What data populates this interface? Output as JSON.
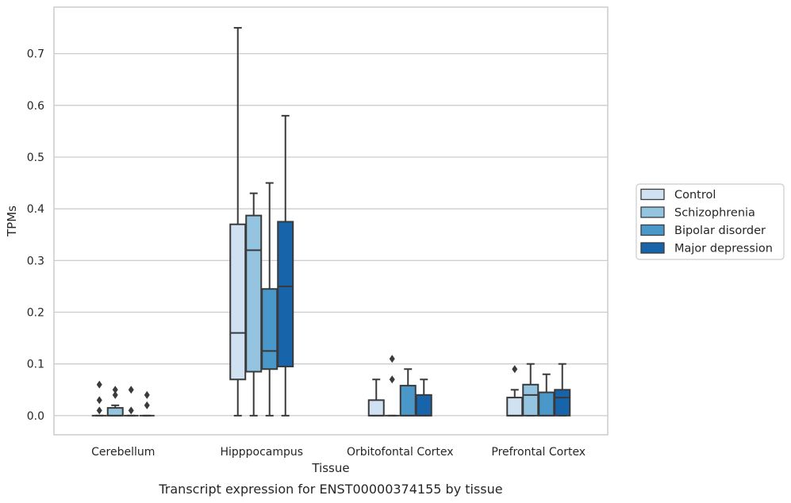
{
  "caption": "Transcript expression for ENST00000374155 by tissue",
  "chart_data": {
    "type": "box",
    "xlabel": "Tissue",
    "ylabel": "TPMs",
    "ylim": [
      -0.037,
      0.79
    ],
    "yticks": [
      "0.0",
      "0.1",
      "0.2",
      "0.3",
      "0.4",
      "0.5",
      "0.6",
      "0.7"
    ],
    "grid": true,
    "legend_position": "right",
    "categories": [
      "Cerebellum",
      "Hipppocampus",
      "Orbitofontal Cortex",
      "Prefrontal Cortex"
    ],
    "series": [
      {
        "name": "Control",
        "color": "#d0e1f2",
        "boxes": [
          {
            "min": 0,
            "q1": 0,
            "median": 0,
            "q3": 0,
            "max": 0,
            "outliers": [
              0.01,
              0.03,
              0.06
            ]
          },
          {
            "min": 0,
            "q1": 0.07,
            "median": 0.16,
            "q3": 0.37,
            "max": 0.75,
            "outliers": []
          },
          {
            "min": 0,
            "q1": 0,
            "median": 0,
            "q3": 0.03,
            "max": 0.07,
            "outliers": []
          },
          {
            "min": 0,
            "q1": 0,
            "median": 0,
            "q3": 0.035,
            "max": 0.05,
            "outliers": [
              0.09
            ]
          }
        ]
      },
      {
        "name": "Schizophrenia",
        "color": "#94c4df",
        "boxes": [
          {
            "min": 0,
            "q1": 0,
            "median": 0,
            "q3": 0.015,
            "max": 0.02,
            "outliers": [
              0.04,
              0.05
            ]
          },
          {
            "min": 0,
            "q1": 0.085,
            "median": 0.32,
            "q3": 0.387,
            "max": 0.43,
            "outliers": []
          },
          {
            "min": 0,
            "q1": 0,
            "median": 0,
            "q3": 0,
            "max": 0,
            "outliers": [
              0.07,
              0.11
            ]
          },
          {
            "min": 0,
            "q1": 0,
            "median": 0.04,
            "q3": 0.06,
            "max": 0.1,
            "outliers": []
          }
        ]
      },
      {
        "name": "Bipolar disorder",
        "color": "#4a98c9",
        "boxes": [
          {
            "min": 0,
            "q1": 0,
            "median": 0,
            "q3": 0,
            "max": 0,
            "outliers": [
              0.01,
              0.05
            ]
          },
          {
            "min": 0,
            "q1": 0.09,
            "median": 0.125,
            "q3": 0.245,
            "max": 0.45,
            "outliers": []
          },
          {
            "min": 0,
            "q1": 0,
            "median": 0,
            "q3": 0.058,
            "max": 0.09,
            "outliers": []
          },
          {
            "min": 0,
            "q1": 0,
            "median": 0,
            "q3": 0.045,
            "max": 0.08,
            "outliers": []
          }
        ]
      },
      {
        "name": "Major depression",
        "color": "#1764ab",
        "boxes": [
          {
            "min": 0,
            "q1": 0,
            "median": 0,
            "q3": 0,
            "max": 0,
            "outliers": [
              0.02,
              0.04
            ]
          },
          {
            "min": 0,
            "q1": 0.095,
            "median": 0.25,
            "q3": 0.375,
            "max": 0.58,
            "outliers": []
          },
          {
            "min": 0,
            "q1": 0,
            "median": 0,
            "q3": 0.04,
            "max": 0.07,
            "outliers": []
          },
          {
            "min": 0,
            "q1": 0,
            "median": 0.035,
            "q3": 0.05,
            "max": 0.1,
            "outliers": []
          }
        ]
      }
    ]
  }
}
